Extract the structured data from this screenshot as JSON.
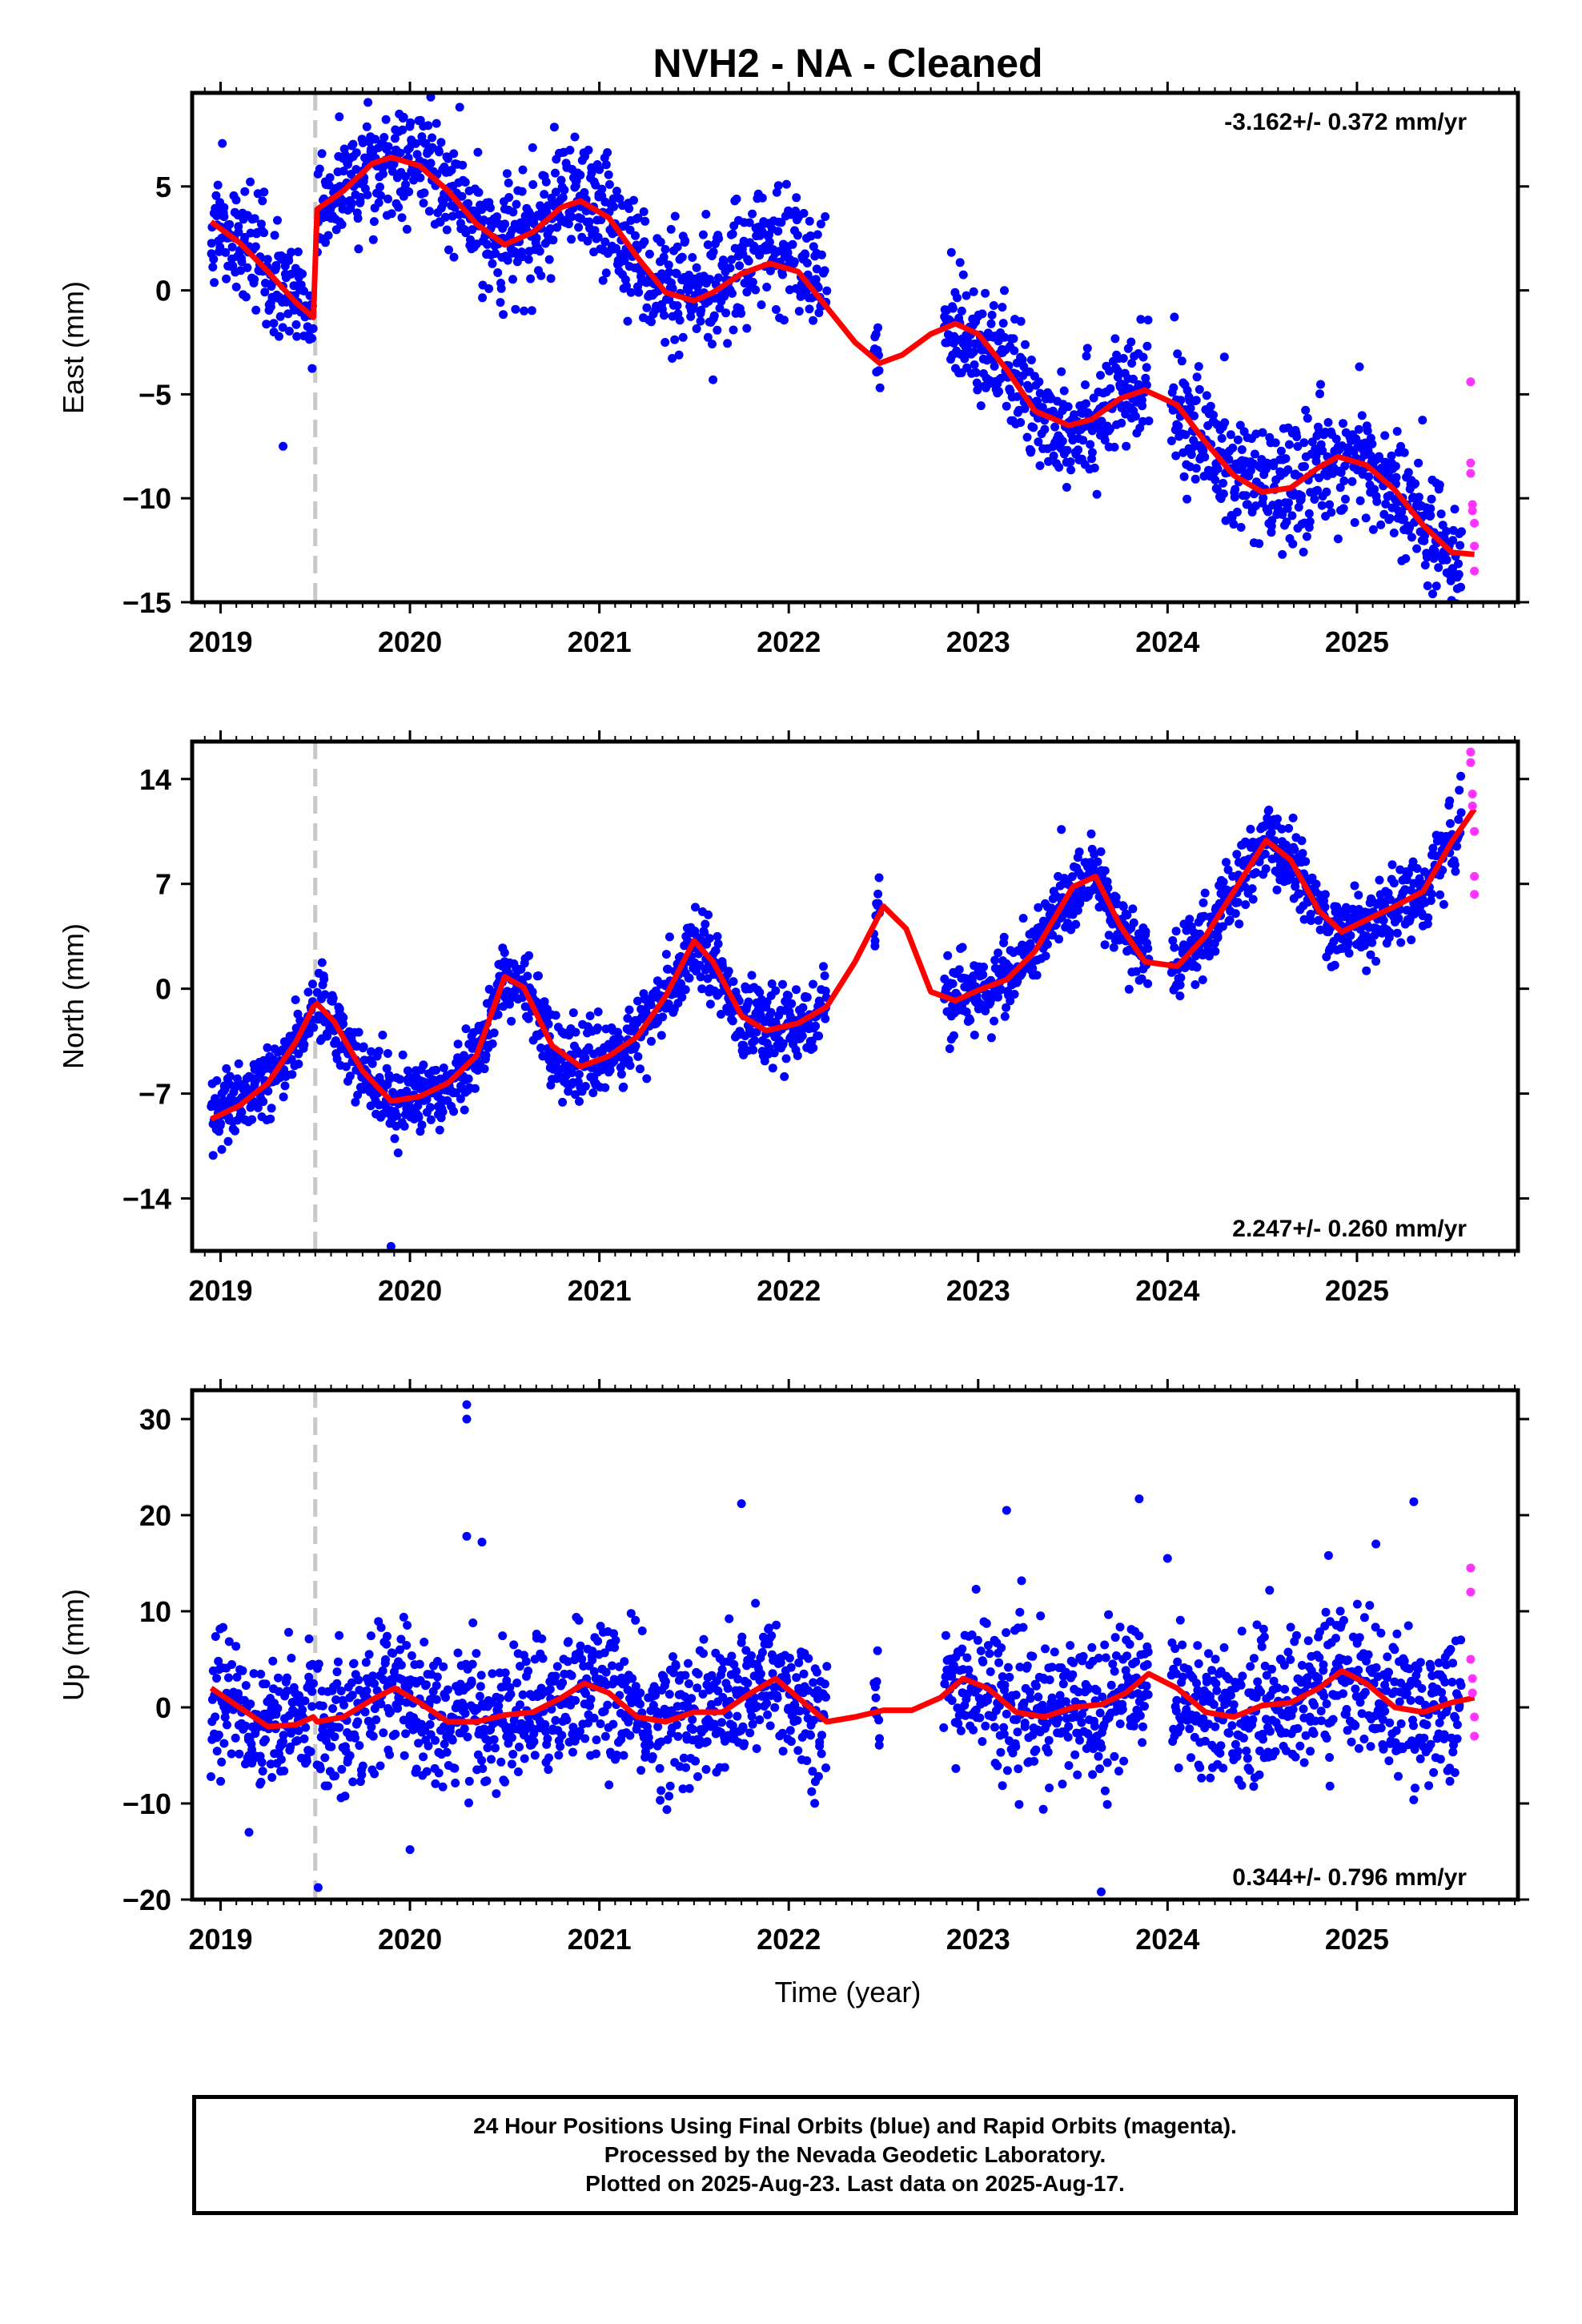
{
  "title": "NVH2  - NA - Cleaned",
  "x_axis_label": "Time (year)",
  "footer": {
    "line1": "24 Hour Positions Using Final Orbits (blue) and Rapid Orbits (magenta).",
    "line2": "Processed by the Nevada Geodetic Laboratory.",
    "line3": "Plotted on 2025-Aug-23. Last data on 2025-Aug-17."
  },
  "colors": {
    "final_orbits": "#0000ff",
    "rapid_orbits": "#ff33ff",
    "model_fit": "#ff0000",
    "offset_marker": "#c8c8c8"
  },
  "chart_data": [
    {
      "type": "scatter",
      "component": "east",
      "ylabel": "East (mm)",
      "xlim": [
        2018.85,
        2025.85
      ],
      "ylim": [
        -15,
        9.5
      ],
      "yticks": [
        5,
        0,
        -5,
        -10,
        -15
      ],
      "ytick_labels": [
        "5",
        "0",
        "−5",
        "−10",
        "−15"
      ],
      "xticks": [
        2019,
        2020,
        2021,
        2022,
        2023,
        2024,
        2025
      ],
      "xtick_labels": [
        "2019",
        "2020",
        "2021",
        "2022",
        "2023",
        "2024",
        "2025"
      ],
      "velocity_text": "-3.162+/- 0.372 mm/yr",
      "velocity_position": "top-right",
      "offset_epoch": 2019.5,
      "model": {
        "name": "model fit",
        "x": [
          2018.95,
          2019.1,
          2019.25,
          2019.4,
          2019.49,
          2019.51,
          2019.65,
          2019.8,
          2019.9,
          2020.05,
          2020.2,
          2020.35,
          2020.5,
          2020.65,
          2020.8,
          2020.9,
          2021.05,
          2021.2,
          2021.35,
          2021.5,
          2021.6,
          2021.75,
          2021.9,
          2022.05,
          2022.2,
          2022.35,
          2022.48,
          2022.6,
          2022.75,
          2022.88,
          2023.0,
          2023.15,
          2023.3,
          2023.48,
          2023.6,
          2023.75,
          2023.88,
          2024.05,
          2024.2,
          2024.35,
          2024.5,
          2024.65,
          2024.8,
          2024.9,
          2025.05,
          2025.2,
          2025.35,
          2025.5,
          2025.62
        ],
        "y": [
          3.3,
          2.3,
          0.9,
          -0.6,
          -1.3,
          3.9,
          4.8,
          6.1,
          6.4,
          6.0,
          4.8,
          3.2,
          2.2,
          2.8,
          4.0,
          4.3,
          3.5,
          1.6,
          -0.1,
          -0.5,
          -0.1,
          0.8,
          1.3,
          0.9,
          -0.8,
          -2.5,
          -3.5,
          -3.1,
          -2.1,
          -1.6,
          -2.1,
          -3.8,
          -5.8,
          -6.5,
          -6.2,
          -5.2,
          -4.8,
          -5.5,
          -7.3,
          -8.9,
          -9.7,
          -9.5,
          -8.5,
          -8.0,
          -8.4,
          -9.6,
          -11.3,
          -12.6,
          -12.7
        ]
      },
      "final_orbits": {
        "name": "final orbits",
        "segments": [
          [
            2018.95,
            2019.49
          ],
          [
            2019.51,
            2020.5
          ],
          [
            2020.5,
            2021.3
          ],
          [
            2021.3,
            2021.68
          ],
          [
            2021.68,
            2022.2
          ],
          [
            2022.45,
            2022.48
          ],
          [
            2022.82,
            2023.9
          ],
          [
            2024.02,
            2025.2
          ],
          [
            2025.2,
            2025.55
          ]
        ],
        "outliers": [
          {
            "x": 2019.33,
            "y": -7.5
          },
          {
            "x": 2024.3,
            "y": -3.2
          },
          {
            "x": 2025.4,
            "y": -14.6
          },
          {
            "x": 2021.6,
            "y": -4.3
          }
        ]
      },
      "rapid_orbits": {
        "name": "rapid orbits",
        "x": [
          2025.6,
          2025.6,
          2025.6,
          2025.61,
          2025.61,
          2025.62,
          2025.62,
          2025.62
        ],
        "y": [
          -4.4,
          -8.3,
          -8.8,
          -10.3,
          -10.6,
          -11.2,
          -12.3,
          -13.5
        ]
      }
    },
    {
      "type": "scatter",
      "component": "north",
      "ylabel": "North (mm)",
      "xlim": [
        2018.85,
        2025.85
      ],
      "ylim": [
        -17.5,
        16.5
      ],
      "yticks": [
        14,
        7,
        0,
        -7,
        -14
      ],
      "ytick_labels": [
        "14",
        "7",
        "0",
        "−7",
        "−14"
      ],
      "xticks": [
        2019,
        2020,
        2021,
        2022,
        2023,
        2024,
        2025
      ],
      "xtick_labels": [
        "2019",
        "2020",
        "2021",
        "2022",
        "2023",
        "2024",
        "2025"
      ],
      "velocity_text": "2.247+/- 0.260 mm/yr",
      "velocity_position": "bottom-right",
      "offset_epoch": 2019.5,
      "model": {
        "name": "model fit",
        "x": [
          2018.95,
          2019.1,
          2019.25,
          2019.4,
          2019.49,
          2019.51,
          2019.6,
          2019.75,
          2019.9,
          2020.05,
          2020.2,
          2020.35,
          2020.5,
          2020.6,
          2020.75,
          2020.9,
          2021.05,
          2021.2,
          2021.35,
          2021.5,
          2021.6,
          2021.75,
          2021.88,
          2022.05,
          2022.2,
          2022.35,
          2022.5,
          2022.62,
          2022.75,
          2022.88,
          2023.0,
          2023.15,
          2023.3,
          2023.5,
          2023.62,
          2023.75,
          2023.88,
          2024.05,
          2024.2,
          2024.35,
          2024.52,
          2024.65,
          2024.8,
          2024.92,
          2025.05,
          2025.2,
          2025.35,
          2025.5,
          2025.62
        ],
        "y": [
          -8.7,
          -7.8,
          -6.3,
          -3.5,
          -1.2,
          -1.0,
          -2.2,
          -5.5,
          -7.5,
          -7.2,
          -6.3,
          -4.5,
          0.8,
          0.1,
          -3.8,
          -5.2,
          -4.5,
          -3.2,
          -0.5,
          3.2,
          1.8,
          -1.8,
          -2.8,
          -2.3,
          -1.2,
          1.8,
          5.5,
          4.0,
          -0.2,
          -0.8,
          -0.1,
          0.6,
          2.5,
          6.8,
          7.5,
          4.2,
          1.8,
          1.5,
          3.5,
          6.5,
          9.9,
          8.6,
          5.2,
          3.8,
          4.6,
          5.5,
          6.5,
          9.8,
          12.0
        ]
      },
      "final_orbits": {
        "name": "final orbits",
        "segments": [
          [
            2018.95,
            2019.49
          ],
          [
            2019.51,
            2020.5
          ],
          [
            2020.5,
            2021.3
          ],
          [
            2021.3,
            2021.68
          ],
          [
            2021.68,
            2022.2
          ],
          [
            2022.45,
            2022.48
          ],
          [
            2022.82,
            2023.9
          ],
          [
            2024.02,
            2025.2
          ],
          [
            2025.2,
            2025.55
          ]
        ],
        "outliers": [
          {
            "x": 2019.9,
            "y": -17.2
          },
          {
            "x": 2022.85,
            "y": -4.0
          },
          {
            "x": 2025.05,
            "y": 1.2
          },
          {
            "x": 2021.25,
            "y": -6.0
          }
        ]
      },
      "rapid_orbits": {
        "name": "rapid orbits",
        "x": [
          2025.6,
          2025.6,
          2025.61,
          2025.61,
          2025.62,
          2025.62,
          2025.62
        ],
        "y": [
          15.8,
          15.1,
          13.0,
          12.2,
          10.5,
          7.5,
          6.3
        ]
      }
    },
    {
      "type": "scatter",
      "component": "up",
      "ylabel": "Up (mm)",
      "xlim": [
        2018.85,
        2025.85
      ],
      "ylim": [
        -20,
        33
      ],
      "yticks": [
        30,
        20,
        10,
        0,
        -10,
        -20
      ],
      "ytick_labels": [
        "30",
        "20",
        "10",
        "0",
        "−10",
        "−20"
      ],
      "xticks": [
        2019,
        2020,
        2021,
        2022,
        2023,
        2024,
        2025
      ],
      "xtick_labels": [
        "2019",
        "2020",
        "2021",
        "2022",
        "2023",
        "2024",
        "2025"
      ],
      "velocity_text": "0.344+/- 0.796 mm/yr",
      "velocity_position": "bottom-right",
      "offset_epoch": 2019.5,
      "model": {
        "name": "model fit",
        "x": [
          2018.95,
          2019.1,
          2019.25,
          2019.4,
          2019.49,
          2019.51,
          2019.65,
          2019.8,
          2019.92,
          2020.05,
          2020.2,
          2020.35,
          2020.5,
          2020.65,
          2020.8,
          2020.92,
          2021.05,
          2021.2,
          2021.35,
          2021.5,
          2021.65,
          2021.8,
          2021.93,
          2022.05,
          2022.2,
          2022.35,
          2022.5,
          2022.65,
          2022.8,
          2022.92,
          2023.05,
          2023.2,
          2023.35,
          2023.5,
          2023.65,
          2023.78,
          2023.9,
          2024.05,
          2024.2,
          2024.35,
          2024.5,
          2024.65,
          2024.8,
          2024.92,
          2025.05,
          2025.2,
          2025.35,
          2025.5,
          2025.62
        ],
        "y": [
          2.0,
          0.0,
          -2.0,
          -1.8,
          -1.0,
          -1.5,
          -1.0,
          0.8,
          2.0,
          0.5,
          -1.5,
          -1.5,
          -0.8,
          -0.5,
          1.0,
          2.5,
          1.5,
          -1.0,
          -1.5,
          -0.5,
          -0.5,
          1.5,
          3.0,
          1.0,
          -1.5,
          -1.0,
          -0.3,
          -0.3,
          1.0,
          3.0,
          2.0,
          -0.5,
          -1.0,
          0.0,
          0.3,
          1.5,
          3.5,
          2.0,
          -0.5,
          -1.0,
          0.2,
          0.5,
          2.0,
          3.8,
          2.5,
          0.0,
          -0.5,
          0.5,
          1.0
        ]
      },
      "final_orbits": {
        "name": "final orbits",
        "segments": [
          [
            2018.95,
            2019.49
          ],
          [
            2019.51,
            2020.5
          ],
          [
            2020.5,
            2021.3
          ],
          [
            2021.3,
            2021.68
          ],
          [
            2021.68,
            2022.2
          ],
          [
            2022.45,
            2022.48
          ],
          [
            2022.82,
            2023.9
          ],
          [
            2024.02,
            2025.2
          ],
          [
            2025.2,
            2025.55
          ]
        ],
        "outliers": [
          {
            "x": 2020.3,
            "y": 31.5
          },
          {
            "x": 2020.3,
            "y": 30.0
          },
          {
            "x": 2020.3,
            "y": 17.8
          },
          {
            "x": 2020.38,
            "y": 17.2
          },
          {
            "x": 2021.75,
            "y": 21.2
          },
          {
            "x": 2023.15,
            "y": 20.5
          },
          {
            "x": 2023.85,
            "y": 21.7
          },
          {
            "x": 2025.3,
            "y": 21.4
          },
          {
            "x": 2023.65,
            "y": -19.2
          },
          {
            "x": 2020.0,
            "y": -14.8
          },
          {
            "x": 2019.15,
            "y": -13.0
          },
          {
            "x": 2024.0,
            "y": 15.5
          },
          {
            "x": 2024.85,
            "y": 15.8
          },
          {
            "x": 2025.1,
            "y": 17.0
          }
        ]
      },
      "rapid_orbits": {
        "name": "rapid orbits",
        "x": [
          2025.6,
          2025.6,
          2025.6,
          2025.61,
          2025.61,
          2025.62,
          2025.62
        ],
        "y": [
          14.5,
          12.0,
          5.0,
          3.0,
          1.5,
          -1.0,
          -3.0
        ]
      }
    }
  ]
}
